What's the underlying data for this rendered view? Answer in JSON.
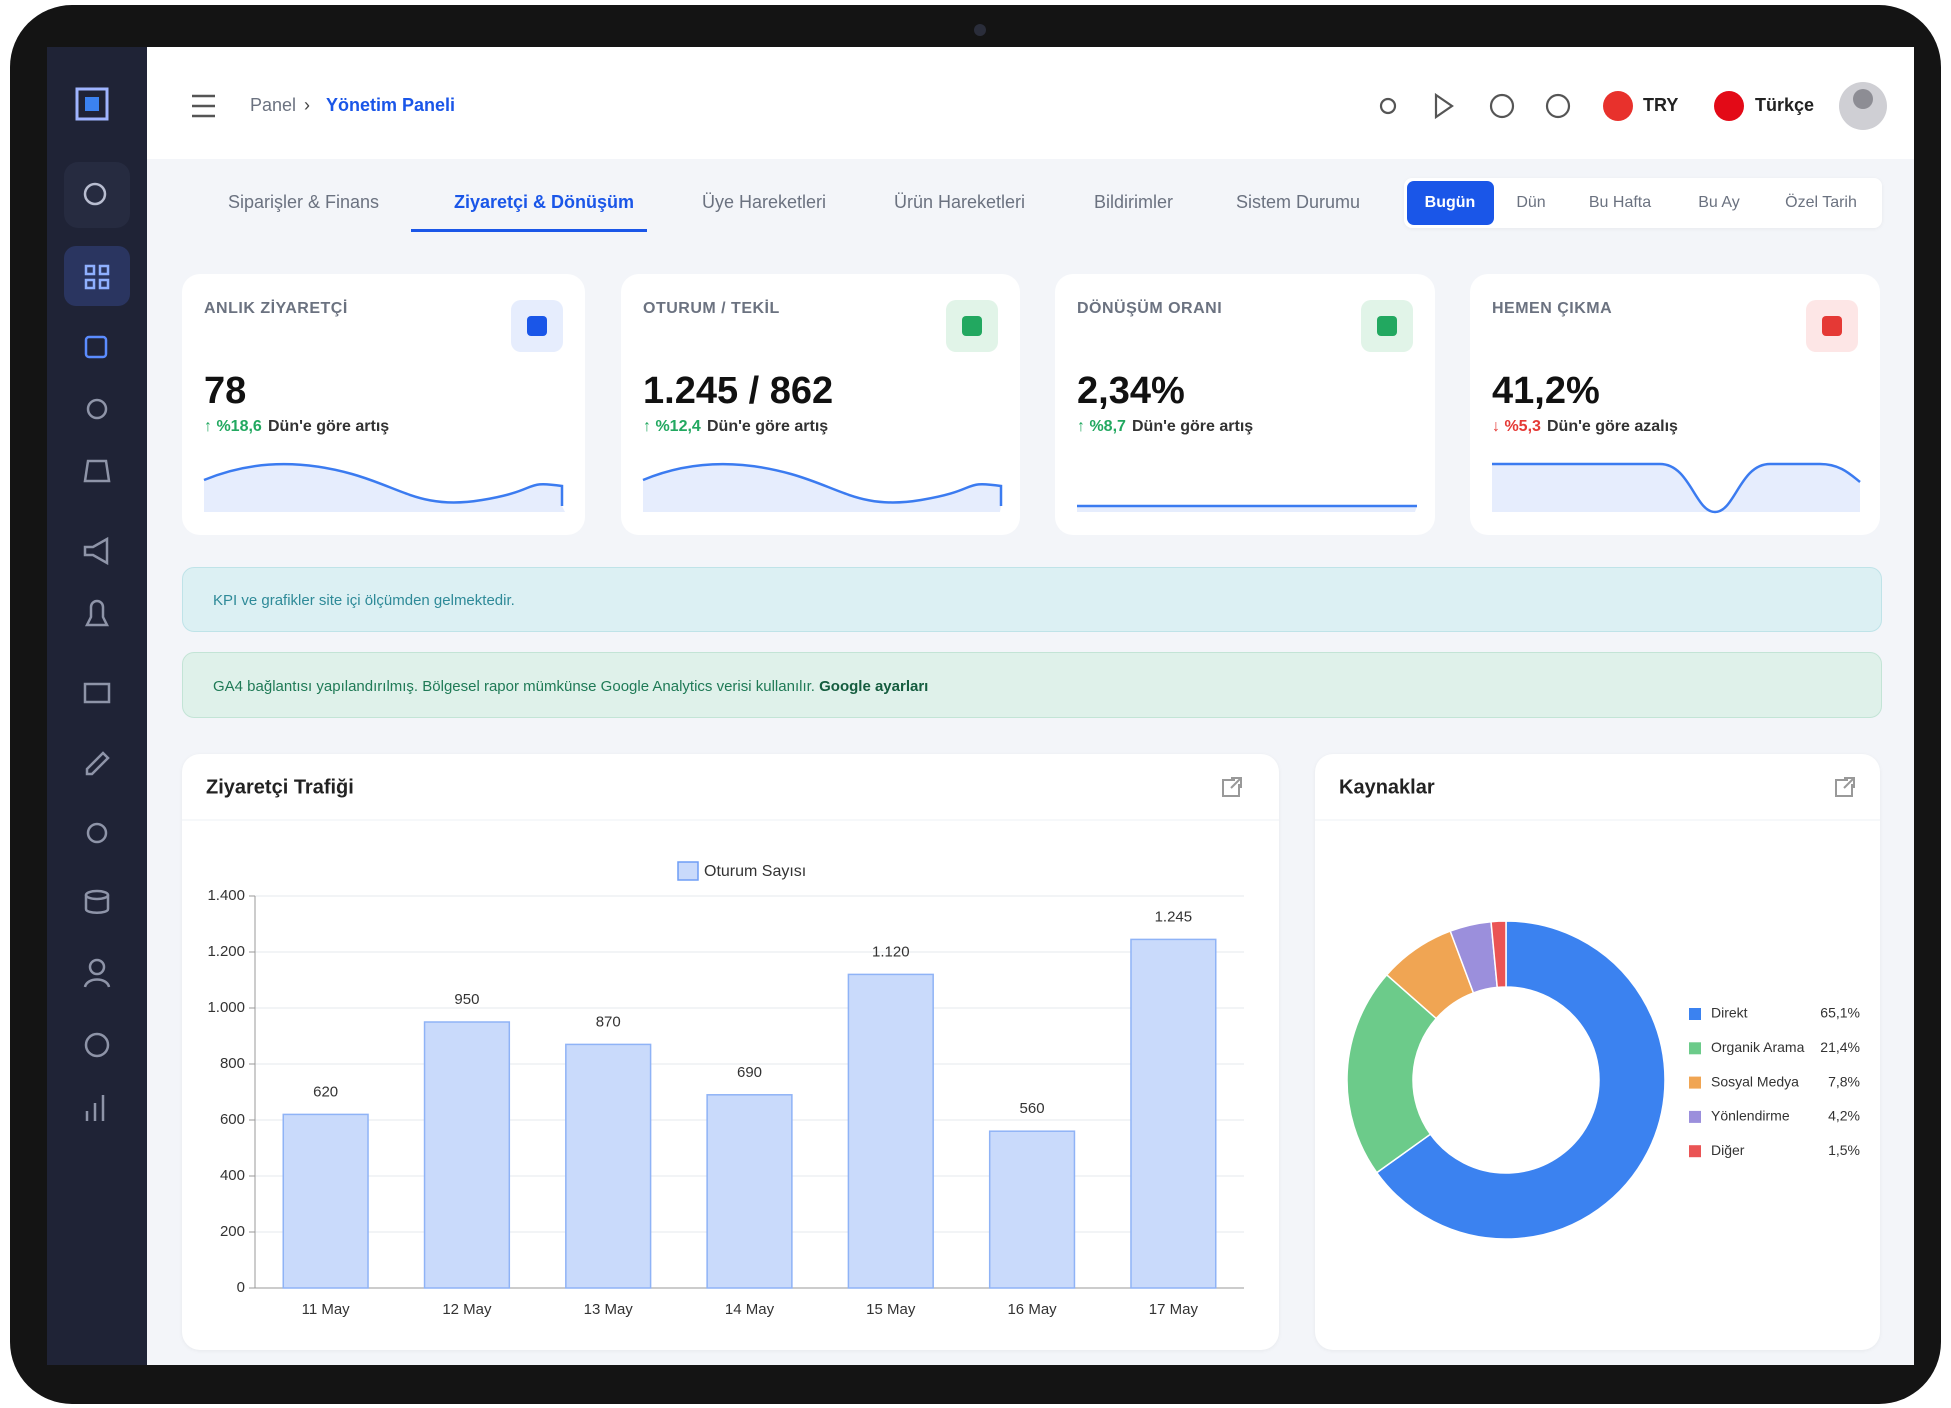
{
  "header": {
    "breadcrumb": [
      "Panel",
      "Yönetim Paneli"
    ],
    "currency": "TRY",
    "language": "Türkçe"
  },
  "tabs": [
    "Siparişler & Finans",
    "Ziyaretçi & Dönüşüm",
    "Üye Hareketleri",
    "Ürün Hareketleri",
    "Bildirimler",
    "Sistem Durumu"
  ],
  "ranges": [
    "Bugün",
    "Dün",
    "Bu Hafta",
    "Bu Ay",
    "Özel Tarih"
  ],
  "kpis": [
    {
      "label": "ANLIK ZİYARETÇİ",
      "value": "78",
      "change": "↑ %18,6",
      "note": "Dün'e göre artış"
    },
    {
      "label": "OTURUM / TEKİL",
      "value": "1.245 / 862",
      "change": "↑ %12,4",
      "note": "Dün'e göre artış"
    },
    {
      "label": "DÖNÜŞÜM ORANI",
      "value": "2,34%",
      "change": "↑ %8,7",
      "note": "Dün'e göre artış"
    },
    {
      "label": "HEMEN ÇIKMA",
      "value": "41,2%",
      "change": "↓ %5,3",
      "note": "Dün'e göre azalış"
    }
  ],
  "notices": [
    {
      "text": "KPI ve grafikler site içi ölçümden gelmektedir."
    },
    {
      "text": "GA4 bağlantısı yapılandırılmış. Bölgesel rapor mümkünse Google Analytics verisi kullanılır.",
      "link": "Google ayarları"
    }
  ],
  "chart_data": [
    {
      "type": "bar",
      "title": "Ziyaretçi Trafiği",
      "categories": [
        "11 May",
        "12 May",
        "13 May",
        "14 May",
        "15 May",
        "16 May",
        "17 May"
      ],
      "series": [
        {
          "name": "Oturum Sayısı",
          "color": "#c9dafb",
          "values": [
            620,
            950,
            870,
            690,
            1120,
            560,
            1245
          ],
          "value_labels": [
            "620",
            "950",
            "870",
            "690",
            "1.120",
            "560",
            "1.245"
          ]
        }
      ],
      "ylim": [
        0,
        1400
      ],
      "yticks": [
        0,
        200,
        400,
        600,
        800,
        {
          "value": 1000,
          "label": "1.000"
        },
        {
          "value": 1200,
          "label": "1.200"
        },
        {
          "value": 1400,
          "label": "1.400"
        }
      ],
      "grid": true
    },
    {
      "type": "pie",
      "title": "Kaynaklar",
      "categories": [
        "Direkt",
        "Organik Arama",
        "Sosyal Medya",
        "Yönlendirme",
        "Diğer"
      ],
      "values": [
        65.1,
        21.4,
        7.8,
        4.2,
        1.5
      ],
      "value_labels": [
        "65,1%",
        "21,4%",
        "7,8%",
        "4,2%",
        "1,5%"
      ],
      "colors": [
        "#3b82f0",
        "#6ccb8a",
        "#f0a553",
        "#9b8fdc",
        "#ea5455"
      ]
    }
  ]
}
